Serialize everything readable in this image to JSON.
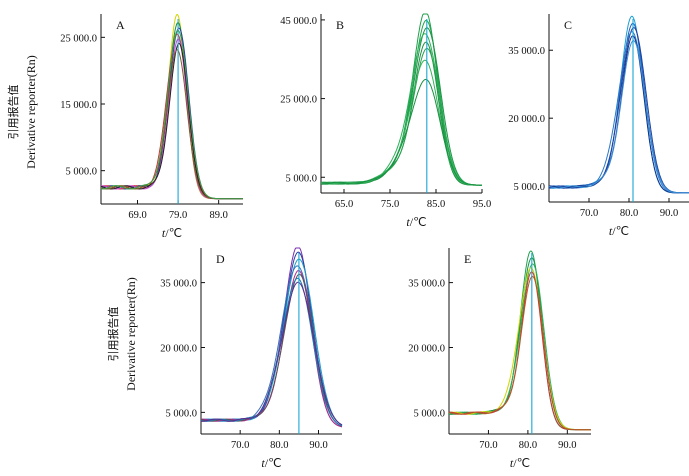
{
  "ylabel": {
    "cn": "引用报告值",
    "en": "Derivative reporter(Rn)"
  },
  "xlabel": {
    "var": "t",
    "unit": "/℃"
  },
  "chart_data": [
    {
      "panel": "A",
      "type": "line",
      "xlim": [
        60.0,
        95.0
      ],
      "ylim": [
        0,
        28500
      ],
      "xticks": [
        {
          "v": 69.0,
          "label": "69.0"
        },
        {
          "v": 79.0,
          "label": "79.0"
        },
        {
          "v": 89.0,
          "label": "89.0"
        }
      ],
      "yticks": [
        {
          "v": 5000,
          "label": "5 000.0"
        },
        {
          "v": 15000,
          "label": "15 000.0"
        },
        {
          "v": 25000,
          "label": "25 000.0"
        }
      ],
      "tm_line": 79.0,
      "curve": {
        "peak_x": 79.0,
        "width": 2.2,
        "base_left": 2500,
        "base_right": 800,
        "shoulder": 0
      },
      "series": [
        {
          "color": "#d4d400",
          "peak": 28300
        },
        {
          "color": "#1c8a3a",
          "peak": 27200
        },
        {
          "color": "#2a3fa0",
          "peak": 26500
        },
        {
          "color": "#cc3333",
          "peak": 25600
        },
        {
          "color": "#cc44cc",
          "peak": 24800
        },
        {
          "color": "#222222",
          "peak": 24000
        },
        {
          "color": "#7a5c2a",
          "peak": 23000
        },
        {
          "color": "#3aa04a",
          "peak": 26000
        }
      ]
    },
    {
      "panel": "B",
      "type": "line",
      "xlim": [
        60.0,
        95.0
      ],
      "ylim": [
        1000,
        46500
      ],
      "xticks": [
        {
          "v": 65.0,
          "label": "65.0"
        },
        {
          "v": 75.0,
          "label": "75.0"
        },
        {
          "v": 85.0,
          "label": "85.0"
        },
        {
          "v": 95.0,
          "label": "95.0"
        }
      ],
      "yticks": [
        {
          "v": 5000,
          "label": "5 000.0"
        },
        {
          "v": 25000,
          "label": "25 000.0"
        },
        {
          "v": 45000,
          "label": "45 000.0"
        }
      ],
      "tm_line": 83.0,
      "curve": {
        "peak_x": 83.0,
        "width": 2.6,
        "base_left": 3500,
        "base_right": 3000,
        "shoulder": 5000
      },
      "series": [
        {
          "color": "#1f9e4a",
          "peak": 45500
        },
        {
          "color": "#22a550",
          "peak": 43000
        },
        {
          "color": "#1a9444",
          "peak": 41000
        },
        {
          "color": "#2bb159",
          "peak": 39500
        },
        {
          "color": "#1e8f43",
          "peak": 37500
        },
        {
          "color": "#27a34e",
          "peak": 36000
        },
        {
          "color": "#33b35c",
          "peak": 33000
        },
        {
          "color": "#189040",
          "peak": 28000
        }
      ]
    },
    {
      "panel": "C",
      "type": "line",
      "xlim": [
        60.0,
        95.0
      ],
      "ylim": [
        1500,
        43000
      ],
      "xticks": [
        {
          "v": 70.0,
          "label": "70.0"
        },
        {
          "v": 80.0,
          "label": "80.0"
        },
        {
          "v": 90.0,
          "label": "90.0"
        }
      ],
      "yticks": [
        {
          "v": 5000,
          "label": "5 000.0"
        },
        {
          "v": 20000,
          "label": "20 000.0"
        },
        {
          "v": 35000,
          "label": "35 000.0"
        }
      ],
      "tm_line": 81.0,
      "curve": {
        "peak_x": 81.0,
        "width": 2.8,
        "base_left": 4800,
        "base_right": 3500,
        "shoulder": 1500
      },
      "series": [
        {
          "color": "#19a0d8",
          "peak": 42000
        },
        {
          "color": "#1f5fbf",
          "peak": 40500
        },
        {
          "color": "#233f9e",
          "peak": 39500
        },
        {
          "color": "#2b78c8",
          "peak": 38500
        },
        {
          "color": "#16318a",
          "peak": 37500
        },
        {
          "color": "#3a8fd6",
          "peak": 36500
        }
      ]
    },
    {
      "panel": "D",
      "type": "line",
      "xlim": [
        60.0,
        96.0
      ],
      "ylim": [
        0,
        43000
      ],
      "xticks": [
        {
          "v": 70.0,
          "label": "70.0"
        },
        {
          "v": 80.0,
          "label": "80.0"
        },
        {
          "v": 90.0,
          "label": "90.0"
        }
      ],
      "yticks": [
        {
          "v": 5000,
          "label": "5 000.0"
        },
        {
          "v": 20000,
          "label": "20 000.0"
        },
        {
          "v": 35000,
          "label": "35 000.0"
        }
      ],
      "tm_line": 85.0,
      "curve": {
        "peak_x": 85.0,
        "width": 3.4,
        "base_left": 3200,
        "base_right": 1500,
        "shoulder": 2500
      },
      "series": [
        {
          "color": "#7a2fb0",
          "peak": 42500
        },
        {
          "color": "#2a3fa0",
          "peak": 41000
        },
        {
          "color": "#1aa0c8",
          "peak": 39500
        },
        {
          "color": "#3a6fb8",
          "peak": 38000
        },
        {
          "color": "#b02a8a",
          "peak": 37000
        },
        {
          "color": "#555555",
          "peak": 36000
        },
        {
          "color": "#1f7ab0",
          "peak": 35000
        },
        {
          "color": "#5a2f8f",
          "peak": 34000
        }
      ]
    },
    {
      "panel": "E",
      "type": "line",
      "xlim": [
        60.0,
        96.0
      ],
      "ylim": [
        0,
        43000
      ],
      "xticks": [
        {
          "v": 70.0,
          "label": "70.0"
        },
        {
          "v": 80.0,
          "label": "80.0"
        },
        {
          "v": 90.0,
          "label": "90.0"
        }
      ],
      "yticks": [
        {
          "v": 5000,
          "label": "5 000.0"
        },
        {
          "v": 20000,
          "label": "20 000.0"
        },
        {
          "v": 35000,
          "label": "35 000.0"
        }
      ],
      "tm_line": 81.0,
      "curve": {
        "peak_x": 81.0,
        "width": 2.6,
        "base_left": 4800,
        "base_right": 1000,
        "shoulder": 1000
      },
      "series": [
        {
          "color": "#22a24e",
          "peak": 42000
        },
        {
          "color": "#1c9244",
          "peak": 40500
        },
        {
          "color": "#2bb159",
          "peak": 39000
        },
        {
          "color": "#d4d400",
          "peak": 38000
        },
        {
          "color": "#cc3333",
          "peak": 37000
        },
        {
          "color": "#b05a2a",
          "peak": 36000
        }
      ]
    }
  ]
}
